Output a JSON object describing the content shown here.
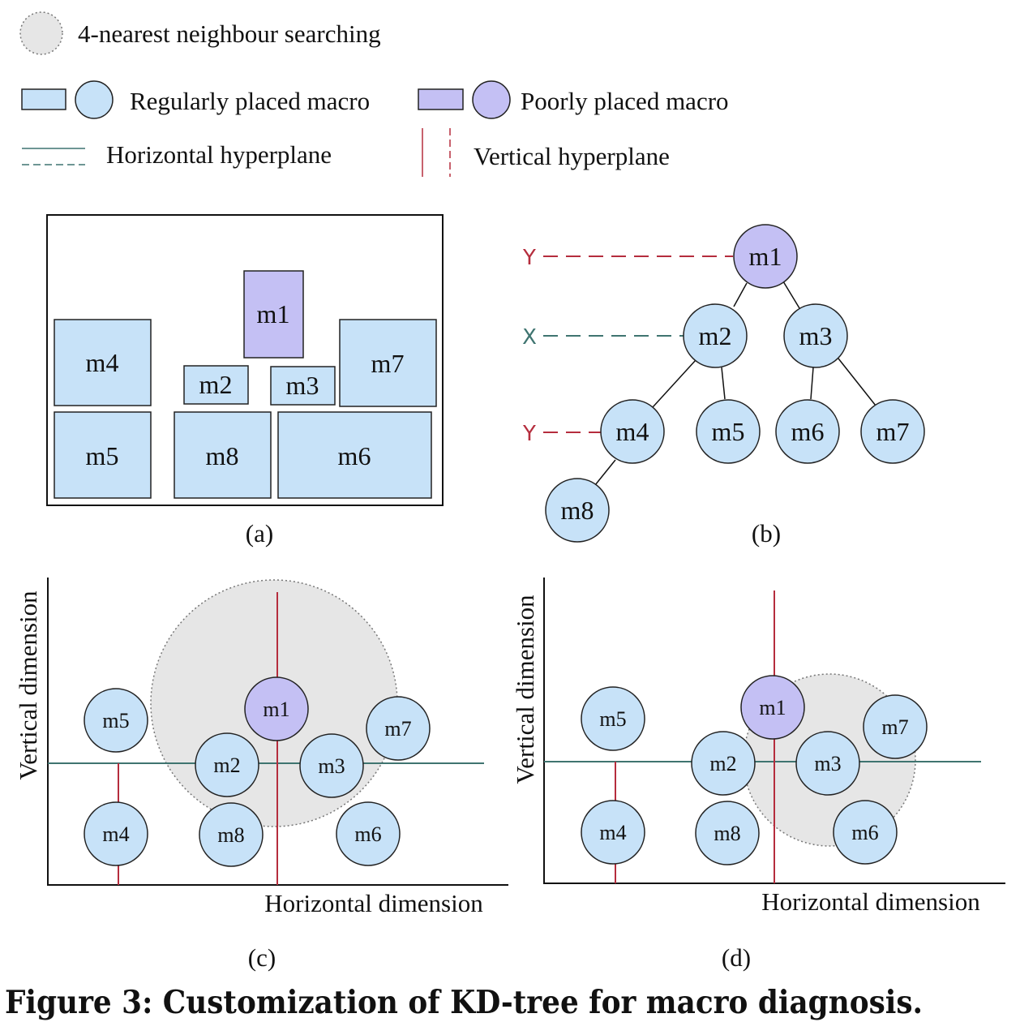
{
  "legend": {
    "search": "4-nearest  neighbour searching",
    "regular": "Regularly placed macro",
    "poor": "Poorly placed macro",
    "horizontal": "Horizontal hyperplane",
    "vertical": "Vertical hyperplane"
  },
  "colors": {
    "regular_fill": "#c7e2f8",
    "poor_fill": "#c4c0f4",
    "search_fill": "#e6e6e6",
    "horizontal_line": "#3f7470",
    "vertical_line": "#b52d3d"
  },
  "panel_a": {
    "label": "(a)",
    "macros": [
      "m1",
      "m4",
      "m2",
      "m3",
      "m7",
      "m5",
      "m8",
      "m6"
    ]
  },
  "panel_b": {
    "label": "(b)",
    "axis_labels": [
      "Y",
      "X",
      "Y"
    ],
    "nodes": [
      "m1",
      "m2",
      "m3",
      "m4",
      "m5",
      "m6",
      "m7",
      "m8"
    ]
  },
  "panel_c": {
    "label": "(c)",
    "xlabel": "Horizontal dimension",
    "ylabel": "Vertical dimension",
    "nodes": [
      "m5",
      "m1",
      "m7",
      "m2",
      "m3",
      "m4",
      "m8",
      "m6"
    ]
  },
  "panel_d": {
    "label": "(d)",
    "xlabel": "Horizontal dimension",
    "ylabel": "Vertical dimension",
    "nodes": [
      "m5",
      "m1",
      "m7",
      "m2",
      "m3",
      "m4",
      "m8",
      "m6"
    ]
  },
  "caption": "Figure 3: Customization of KD-tree for macro diagnosis."
}
